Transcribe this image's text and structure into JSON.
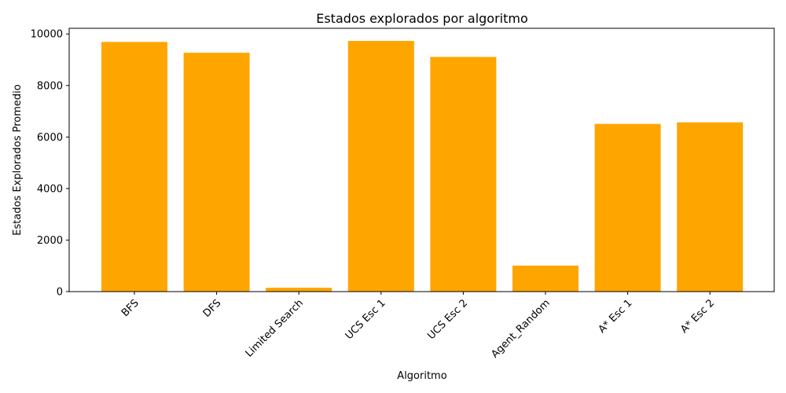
{
  "chart_data": {
    "type": "bar",
    "title": "Estados explorados por algoritmo",
    "xlabel": "Algoritmo",
    "ylabel": "Estados Explorados Promedio",
    "categories": [
      "BFS",
      "DFS",
      "Limited Search",
      "UCS Esc 1",
      "UCS Esc 2",
      "Agent_Random",
      "A* Esc 1",
      "A* Esc 2"
    ],
    "values": [
      9690,
      9270,
      150,
      9730,
      9110,
      1010,
      6510,
      6570
    ],
    "ylim": [
      0,
      10220
    ],
    "yticks": [
      0,
      2000,
      4000,
      6000,
      8000,
      10000
    ],
    "bar_color": "#ffa500",
    "grid": false,
    "legend": "none"
  }
}
